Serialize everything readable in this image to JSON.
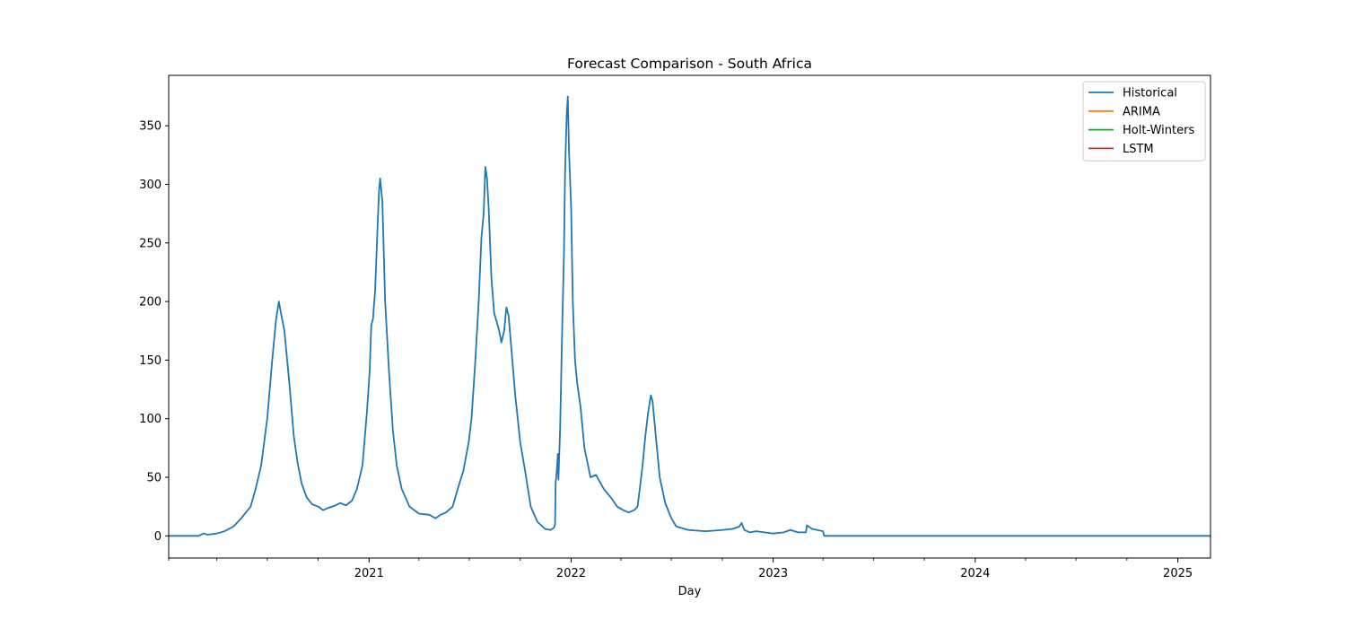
{
  "chart_data": {
    "type": "line",
    "title": "Forecast Comparison - South Africa",
    "xlabel": "Day",
    "ylabel": "",
    "xlim": [
      "2020-01-05",
      "2025-03-01"
    ],
    "ylim": [
      -18.9,
      393.0
    ],
    "yticks": [
      0,
      50,
      100,
      150,
      200,
      250,
      300,
      350
    ],
    "xticks": [
      {
        "date": "2021-01-01",
        "label": "2021"
      },
      {
        "date": "2022-01-01",
        "label": "2022"
      },
      {
        "date": "2023-01-01",
        "label": "2023"
      },
      {
        "date": "2024-01-01",
        "label": "2024"
      },
      {
        "date": "2025-01-01",
        "label": "2025"
      }
    ],
    "minor_ticks": [
      "2020-04-01",
      "2020-07-01",
      "2020-10-01",
      "2021-04-01",
      "2021-07-01",
      "2021-10-01",
      "2022-04-01",
      "2022-07-01",
      "2022-10-01",
      "2023-04-01",
      "2023-07-01",
      "2023-10-01",
      "2024-04-01",
      "2024-07-01",
      "2024-10-01"
    ],
    "legend_position": "top-right",
    "grid": false,
    "series": [
      {
        "name": "Historical",
        "color": "#1f77b4",
        "points": [
          [
            "2020-01-05",
            0
          ],
          [
            "2020-02-28",
            0
          ],
          [
            "2020-03-08",
            2
          ],
          [
            "2020-03-15",
            1
          ],
          [
            "2020-04-01",
            2
          ],
          [
            "2020-04-15",
            4
          ],
          [
            "2020-05-01",
            8
          ],
          [
            "2020-05-15",
            15
          ],
          [
            "2020-06-01",
            25
          ],
          [
            "2020-06-10",
            40
          ],
          [
            "2020-06-20",
            60
          ],
          [
            "2020-07-01",
            100
          ],
          [
            "2020-07-10",
            150
          ],
          [
            "2020-07-17",
            185
          ],
          [
            "2020-07-22",
            200
          ],
          [
            "2020-07-25",
            192
          ],
          [
            "2020-08-01",
            175
          ],
          [
            "2020-08-10",
            130
          ],
          [
            "2020-08-18",
            85
          ],
          [
            "2020-08-25",
            62
          ],
          [
            "2020-09-01",
            45
          ],
          [
            "2020-09-10",
            33
          ],
          [
            "2020-09-20",
            27
          ],
          [
            "2020-10-01",
            25
          ],
          [
            "2020-10-10",
            22
          ],
          [
            "2020-10-20",
            24
          ],
          [
            "2020-11-01",
            26
          ],
          [
            "2020-11-10",
            28
          ],
          [
            "2020-11-20",
            26
          ],
          [
            "2020-12-01",
            30
          ],
          [
            "2020-12-10",
            40
          ],
          [
            "2020-12-20",
            60
          ],
          [
            "2020-12-28",
            105
          ],
          [
            "2021-01-02",
            140
          ],
          [
            "2021-01-05",
            180
          ],
          [
            "2021-01-08",
            185
          ],
          [
            "2021-01-12",
            210
          ],
          [
            "2021-01-16",
            260
          ],
          [
            "2021-01-19",
            295
          ],
          [
            "2021-01-21",
            305
          ],
          [
            "2021-01-25",
            285
          ],
          [
            "2021-01-30",
            200
          ],
          [
            "2021-02-06",
            140
          ],
          [
            "2021-02-13",
            90
          ],
          [
            "2021-02-20",
            60
          ],
          [
            "2021-03-01",
            40
          ],
          [
            "2021-03-15",
            25
          ],
          [
            "2021-04-01",
            19
          ],
          [
            "2021-04-20",
            18
          ],
          [
            "2021-05-01",
            15
          ],
          [
            "2021-05-10",
            18
          ],
          [
            "2021-05-20",
            20
          ],
          [
            "2021-06-01",
            25
          ],
          [
            "2021-06-10",
            40
          ],
          [
            "2021-06-20",
            55
          ],
          [
            "2021-06-30",
            80
          ],
          [
            "2021-07-05",
            100
          ],
          [
            "2021-07-12",
            150
          ],
          [
            "2021-07-18",
            200
          ],
          [
            "2021-07-23",
            255
          ],
          [
            "2021-07-27",
            275
          ],
          [
            "2021-07-30",
            315
          ],
          [
            "2021-08-02",
            305
          ],
          [
            "2021-08-05",
            280
          ],
          [
            "2021-08-10",
            220
          ],
          [
            "2021-08-15",
            190
          ],
          [
            "2021-08-20",
            182
          ],
          [
            "2021-08-24",
            175
          ],
          [
            "2021-08-28",
            165
          ],
          [
            "2021-09-02",
            175
          ],
          [
            "2021-09-06",
            195
          ],
          [
            "2021-09-10",
            188
          ],
          [
            "2021-09-15",
            160
          ],
          [
            "2021-09-22",
            120
          ],
          [
            "2021-10-01",
            80
          ],
          [
            "2021-10-10",
            55
          ],
          [
            "2021-10-20",
            25
          ],
          [
            "2021-11-01",
            12
          ],
          [
            "2021-11-15",
            6
          ],
          [
            "2021-11-25",
            5
          ],
          [
            "2021-12-01",
            7
          ],
          [
            "2021-12-03",
            10
          ],
          [
            "2021-12-04",
            45
          ],
          [
            "2021-12-06",
            55
          ],
          [
            "2021-12-08",
            70
          ],
          [
            "2021-12-09",
            48
          ],
          [
            "2021-12-12",
            90
          ],
          [
            "2021-12-16",
            180
          ],
          [
            "2021-12-19",
            240
          ],
          [
            "2021-12-21",
            310
          ],
          [
            "2021-12-24",
            360
          ],
          [
            "2021-12-26",
            375
          ],
          [
            "2021-12-28",
            330
          ],
          [
            "2022-01-01",
            280
          ],
          [
            "2022-01-04",
            200
          ],
          [
            "2022-01-08",
            150
          ],
          [
            "2022-01-12",
            130
          ],
          [
            "2022-01-18",
            110
          ],
          [
            "2022-01-25",
            75
          ],
          [
            "2022-02-05",
            50
          ],
          [
            "2022-02-15",
            52
          ],
          [
            "2022-03-01",
            40
          ],
          [
            "2022-03-15",
            32
          ],
          [
            "2022-03-25",
            25
          ],
          [
            "2022-04-05",
            22
          ],
          [
            "2022-04-15",
            20
          ],
          [
            "2022-04-25",
            22
          ],
          [
            "2022-05-01",
            25
          ],
          [
            "2022-05-05",
            40
          ],
          [
            "2022-05-10",
            60
          ],
          [
            "2022-05-15",
            85
          ],
          [
            "2022-05-20",
            105
          ],
          [
            "2022-05-25",
            120
          ],
          [
            "2022-05-28",
            115
          ],
          [
            "2022-06-03",
            85
          ],
          [
            "2022-06-10",
            50
          ],
          [
            "2022-06-20",
            28
          ],
          [
            "2022-07-01",
            15
          ],
          [
            "2022-07-10",
            8
          ],
          [
            "2022-08-01",
            5
          ],
          [
            "2022-09-01",
            4
          ],
          [
            "2022-10-01",
            5
          ],
          [
            "2022-10-20",
            6
          ],
          [
            "2022-11-01",
            8
          ],
          [
            "2022-11-05",
            11
          ],
          [
            "2022-11-10",
            5
          ],
          [
            "2022-11-20",
            3
          ],
          [
            "2022-12-01",
            4
          ],
          [
            "2023-01-01",
            2
          ],
          [
            "2023-01-20",
            3
          ],
          [
            "2023-02-01",
            5
          ],
          [
            "2023-02-15",
            3
          ],
          [
            "2023-03-01",
            3
          ],
          [
            "2023-03-03",
            9
          ],
          [
            "2023-03-12",
            6
          ],
          [
            "2023-04-01",
            4
          ],
          [
            "2023-04-03",
            0
          ],
          [
            "2025-03-01",
            0
          ]
        ]
      },
      {
        "name": "ARIMA",
        "color": "#ff7f0e",
        "points": []
      },
      {
        "name": "Holt-Winters",
        "color": "#2ca02c",
        "points": []
      },
      {
        "name": "LSTM",
        "color": "#d62728",
        "points": []
      }
    ]
  }
}
